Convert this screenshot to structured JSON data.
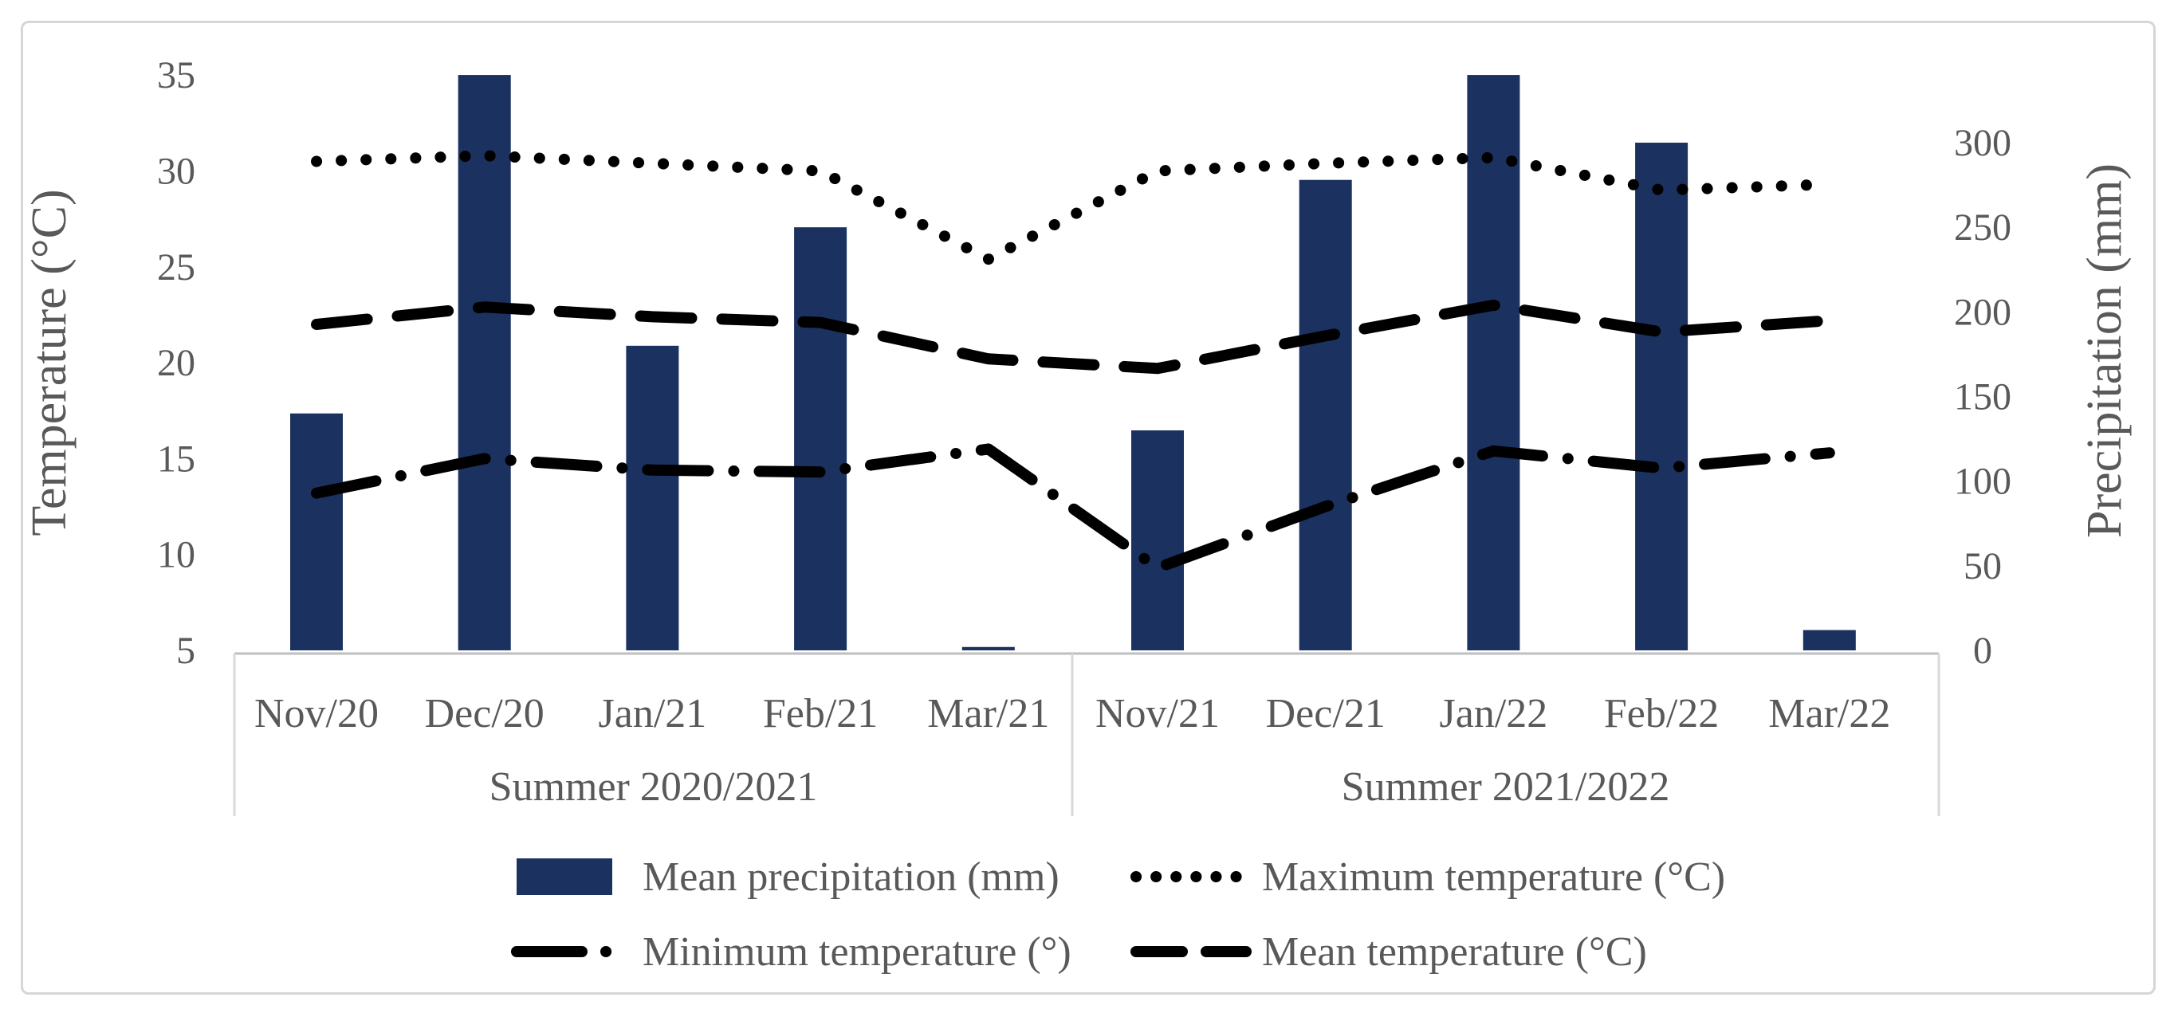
{
  "figure": {
    "background": "#ffffff",
    "frame_color": "#d6d6d6",
    "text_color": "#595959",
    "axis_line_color": "#bfbfbf",
    "box_line_color": "#d9d9d9"
  },
  "chart_data": {
    "type": "bar",
    "subtype": "combo-bar-line-dual-axis",
    "categories": [
      "Nov/20",
      "Dec/20",
      "Jan/21",
      "Feb/21",
      "Mar/21",
      "Nov/21",
      "Dec/21",
      "Jan/22",
      "Feb/22",
      "Mar/22"
    ],
    "category_groups": [
      {
        "label": "Summer 2020/2021",
        "start": 0,
        "end": 4
      },
      {
        "label": "Summer 2021/2022",
        "start": 5,
        "end": 9
      }
    ],
    "series": [
      {
        "name": "Mean precipitation (mm)",
        "type": "bar",
        "axis": "right",
        "color": "#1b3160",
        "values": [
          140,
          340,
          180,
          250,
          2,
          130,
          278,
          340,
          300,
          12
        ]
      },
      {
        "name": "Maximum temperature (°C)",
        "type": "line",
        "style": "dotted",
        "axis": "left",
        "color": "#000000",
        "values": [
          30.5,
          30.8,
          30.4,
          30.0,
          25.4,
          30.0,
          30.4,
          30.7,
          29.0,
          29.3
        ]
      },
      {
        "name": "Minimum temperature (°)",
        "type": "line",
        "style": "dash-dot",
        "axis": "left",
        "color": "#000000",
        "values": [
          13.2,
          15.0,
          14.4,
          14.3,
          15.5,
          9.3,
          12.5,
          15.4,
          14.5,
          15.3
        ]
      },
      {
        "name": "Mean temperature (°C)",
        "type": "line",
        "style": "dashed",
        "axis": "left",
        "color": "#000000",
        "values": [
          22.0,
          22.9,
          22.4,
          22.1,
          20.2,
          19.7,
          21.4,
          23.0,
          21.6,
          22.2
        ]
      }
    ],
    "left_axis": {
      "label": "Temperature (°C)",
      "min": 5,
      "max": 35,
      "ticks": [
        5,
        10,
        15,
        20,
        25,
        30,
        35
      ]
    },
    "right_axis": {
      "label": "Precipitation (mm)",
      "min": 0,
      "max": 300,
      "ticks": [
        0,
        50,
        100,
        150,
        200,
        250,
        300
      ]
    },
    "grid": false,
    "legend_position": "bottom",
    "legend_rows": [
      [
        {
          "series": 0,
          "swatch": "bar"
        },
        {
          "series": 1,
          "swatch": "dotted"
        }
      ],
      [
        {
          "series": 2,
          "swatch": "dash-dot"
        },
        {
          "series": 3,
          "swatch": "dashed"
        }
      ]
    ]
  }
}
